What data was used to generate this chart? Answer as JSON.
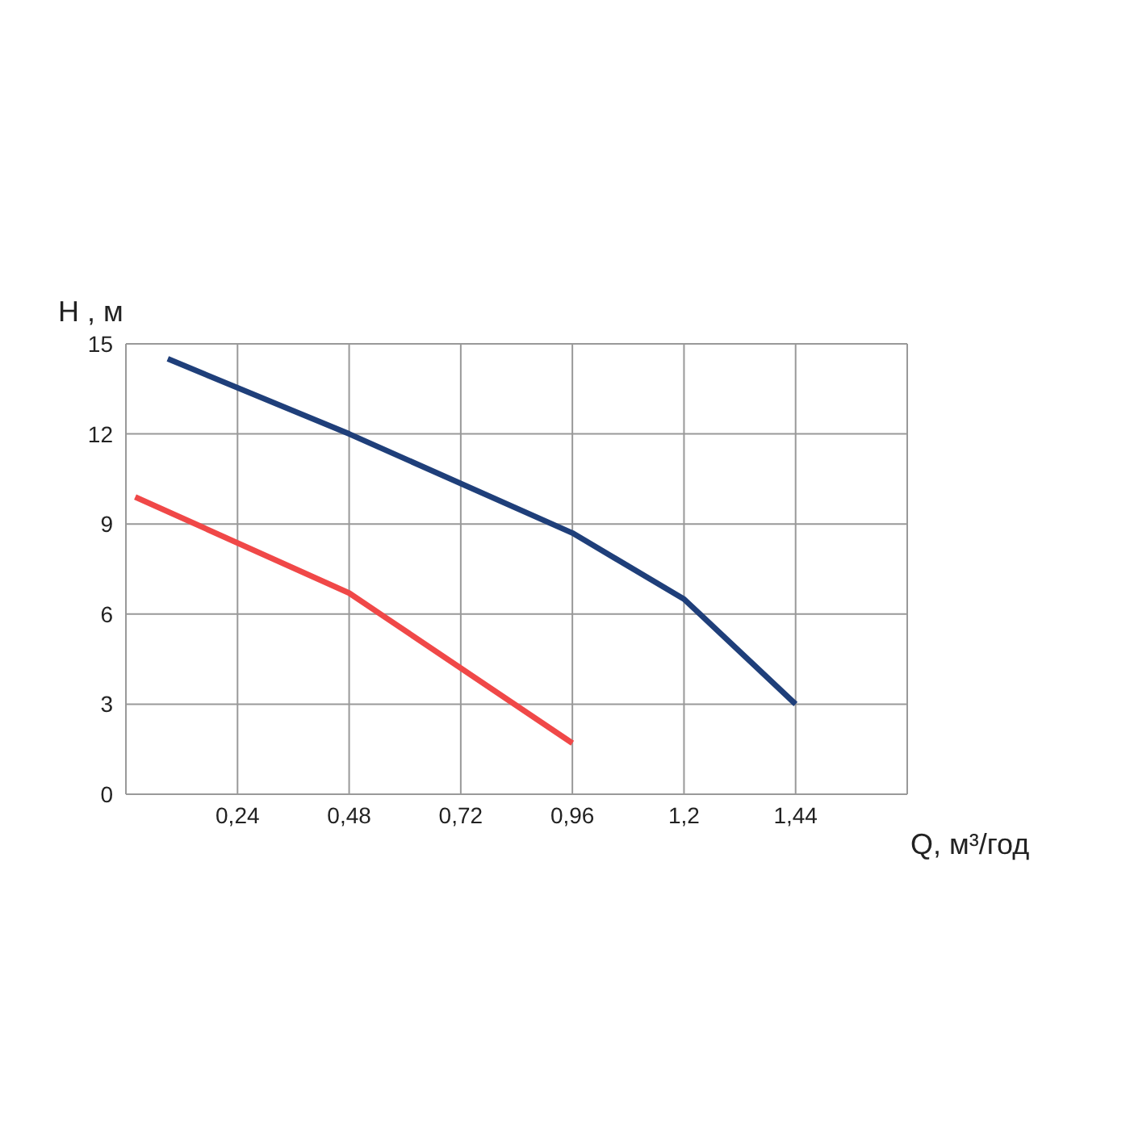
{
  "chart_data": {
    "type": "line",
    "xlabel": "Q, м³/год",
    "ylabel": "H , м",
    "series": [
      {
        "color": "#1f3f7a",
        "x": [
          0.09,
          0.48,
          0.96,
          1.2,
          1.44
        ],
        "values": [
          14.5,
          12.0,
          8.7,
          6.5,
          3.0
        ]
      },
      {
        "color": "#f04848",
        "x": [
          0.02,
          0.48,
          0.96
        ],
        "values": [
          9.9,
          6.7,
          1.7
        ]
      }
    ],
    "xlim": [
      0,
      1.68
    ],
    "xticks": [
      {
        "value": 0.24,
        "label": "0,24"
      },
      {
        "value": 0.48,
        "label": "0,48"
      },
      {
        "value": 0.72,
        "label": "0,72"
      },
      {
        "value": 0.96,
        "label": "0,96"
      },
      {
        "value": 1.2,
        "label": "1,2"
      },
      {
        "value": 1.44,
        "label": "1,44"
      }
    ],
    "ylim": [
      0,
      15
    ],
    "yticks": [
      0,
      3,
      6,
      9,
      12,
      15
    ],
    "grid": true,
    "marker": "none",
    "line_style": "solid"
  }
}
